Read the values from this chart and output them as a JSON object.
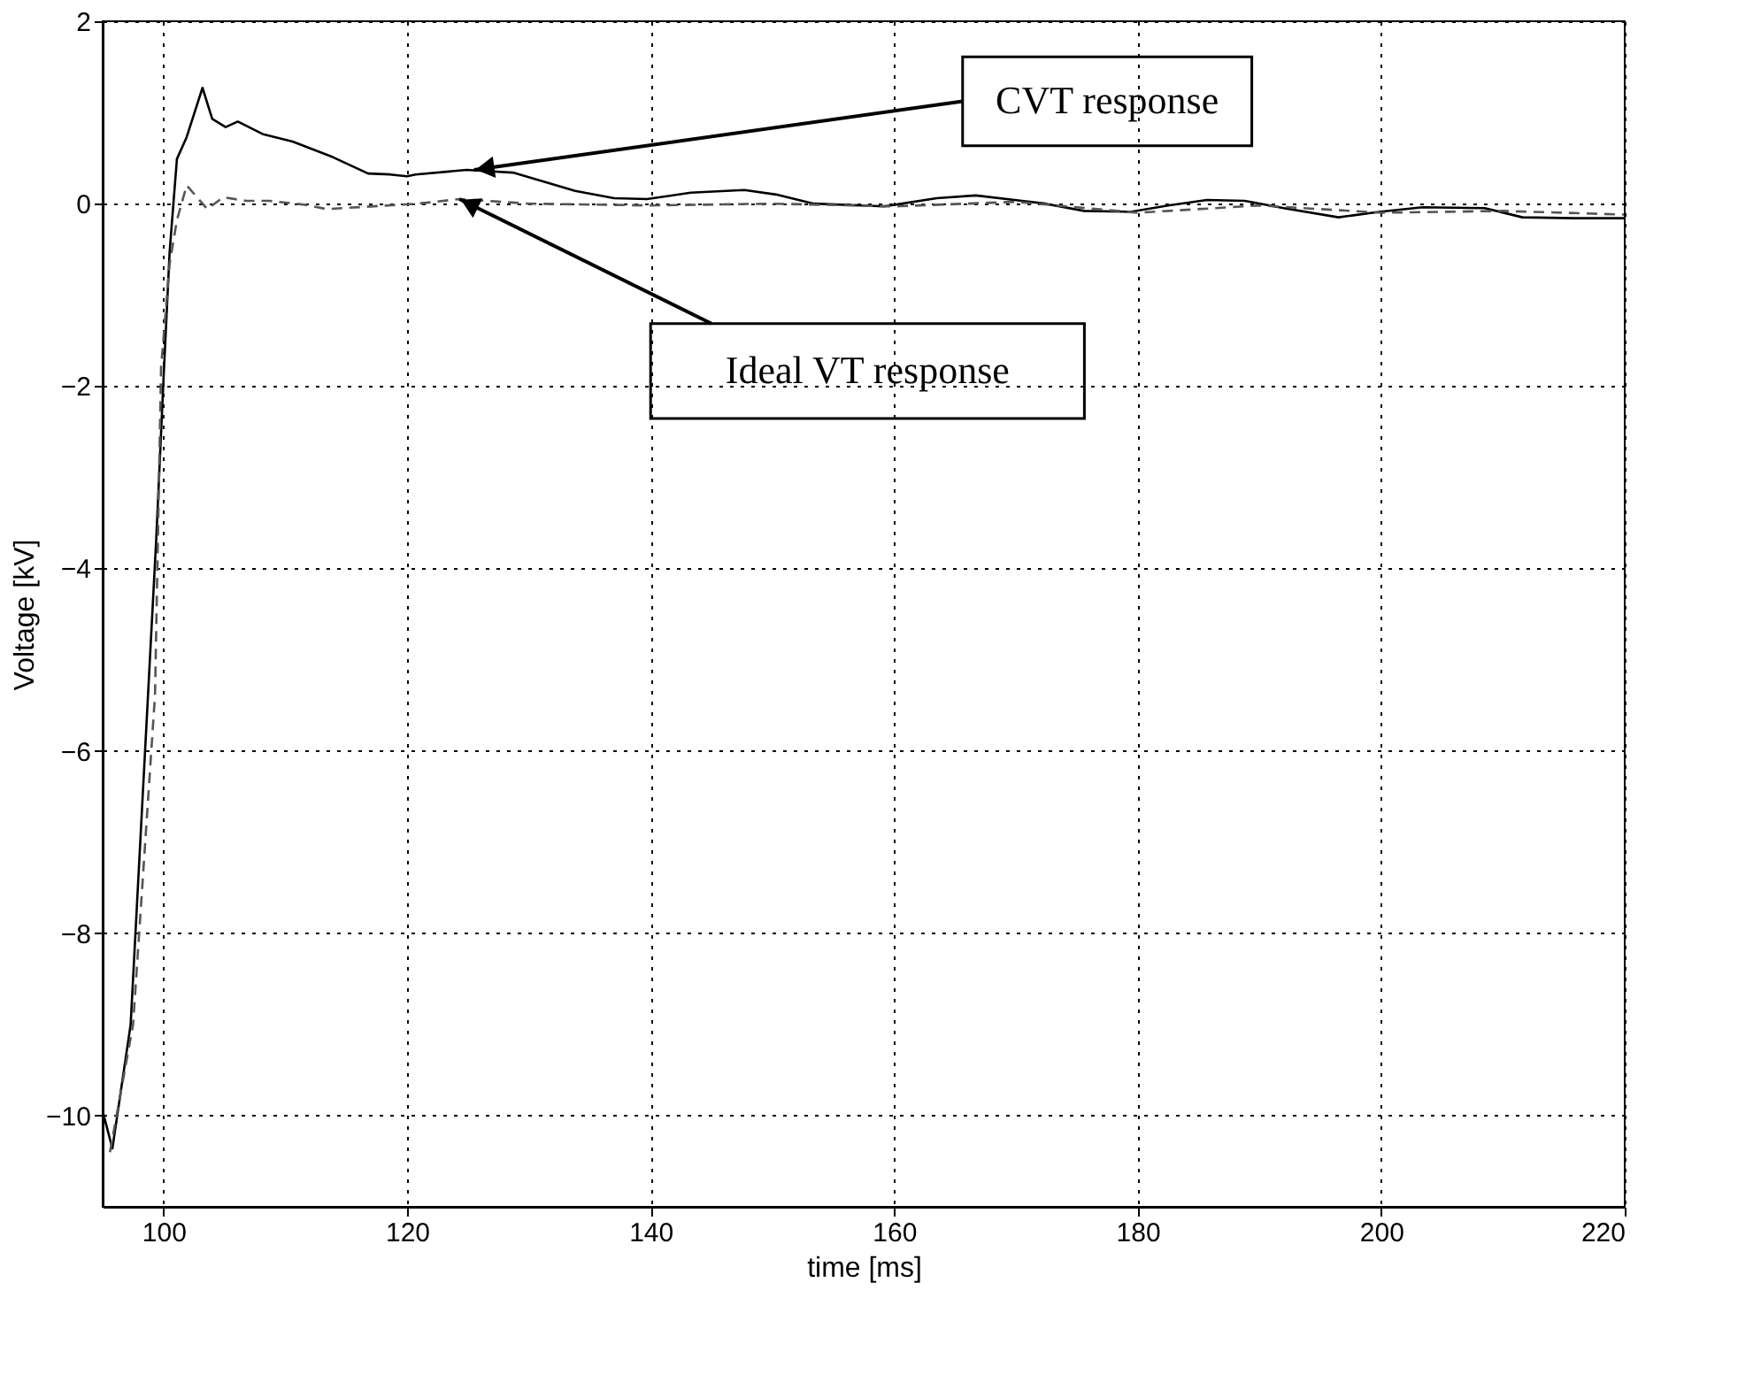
{
  "chart_data": {
    "type": "line",
    "xlabel": "time [ms]",
    "ylabel": "Voltage [kV]",
    "xlim": [
      95,
      220
    ],
    "ylim": [
      -11,
      2
    ],
    "xticks": [
      100,
      120,
      140,
      160,
      180,
      200,
      220
    ],
    "yticks": [
      -10,
      -8,
      -6,
      -4,
      -2,
      0,
      2
    ],
    "grid": true,
    "series": [
      {
        "color": "#000000",
        "line_style": "solid",
        "x": [
          95,
          95.8,
          97.3,
          99.4,
          100,
          100.5,
          101.1,
          101.9,
          103.2,
          104,
          105.1,
          106.1,
          108.2,
          110.6,
          113.9,
          116.8,
          118.6,
          120,
          120.7,
          124.9,
          128.7,
          133.8,
          137,
          139.7,
          143.3,
          147.7,
          150.3,
          153.4,
          159.2,
          163.5,
          166.7,
          170.5,
          172.4,
          175.6,
          179.4,
          182.5,
          185.7,
          188.8,
          192,
          196.5,
          199.8,
          203.4,
          208.5,
          211.6,
          215.9,
          220
        ],
        "values": [
          -9.95,
          -10.36,
          -9,
          -3.68,
          -1.92,
          -0.53,
          0.49,
          0.73,
          1.27,
          0.93,
          0.84,
          0.9,
          0.76,
          0.68,
          0.51,
          0.33,
          0.32,
          0.3,
          0.32,
          0.37,
          0.34,
          0.14,
          0.06,
          0.05,
          0.12,
          0.15,
          0.1,
          0,
          -0.03,
          0.06,
          0.09,
          0.03,
          0,
          -0.08,
          -0.09,
          -0.02,
          0.04,
          0.03,
          -0.05,
          -0.15,
          -0.09,
          -0.04,
          -0.05,
          -0.15,
          -0.16,
          -0.16
        ]
      },
      {
        "color": "#555555",
        "line_style": "dashed",
        "x": [
          95.6,
          97.5,
          99.3,
          99.8,
          100.5,
          101.1,
          101.9,
          103.6,
          104.9,
          106.8,
          108.7,
          111.5,
          113.4,
          120.9,
          124.3,
          130,
          140,
          150,
          160,
          170,
          180,
          190,
          200,
          210,
          220
        ],
        "values": [
          -10.4,
          -9,
          -5.39,
          -1.79,
          -0.66,
          -0.18,
          0.2,
          -0.06,
          0.07,
          0.03,
          0.03,
          -0.01,
          -0.06,
          0,
          0.05,
          0,
          -0.02,
          0,
          -0.03,
          0.02,
          -0.1,
          -0.02,
          -0.1,
          -0.08,
          -0.12
        ]
      }
    ],
    "annotations": [
      {
        "text": "CVT response",
        "x": 125.5,
        "y": 0.37
      },
      {
        "text": "Ideal VT response",
        "x": 124.3,
        "y": 0.05
      }
    ]
  }
}
